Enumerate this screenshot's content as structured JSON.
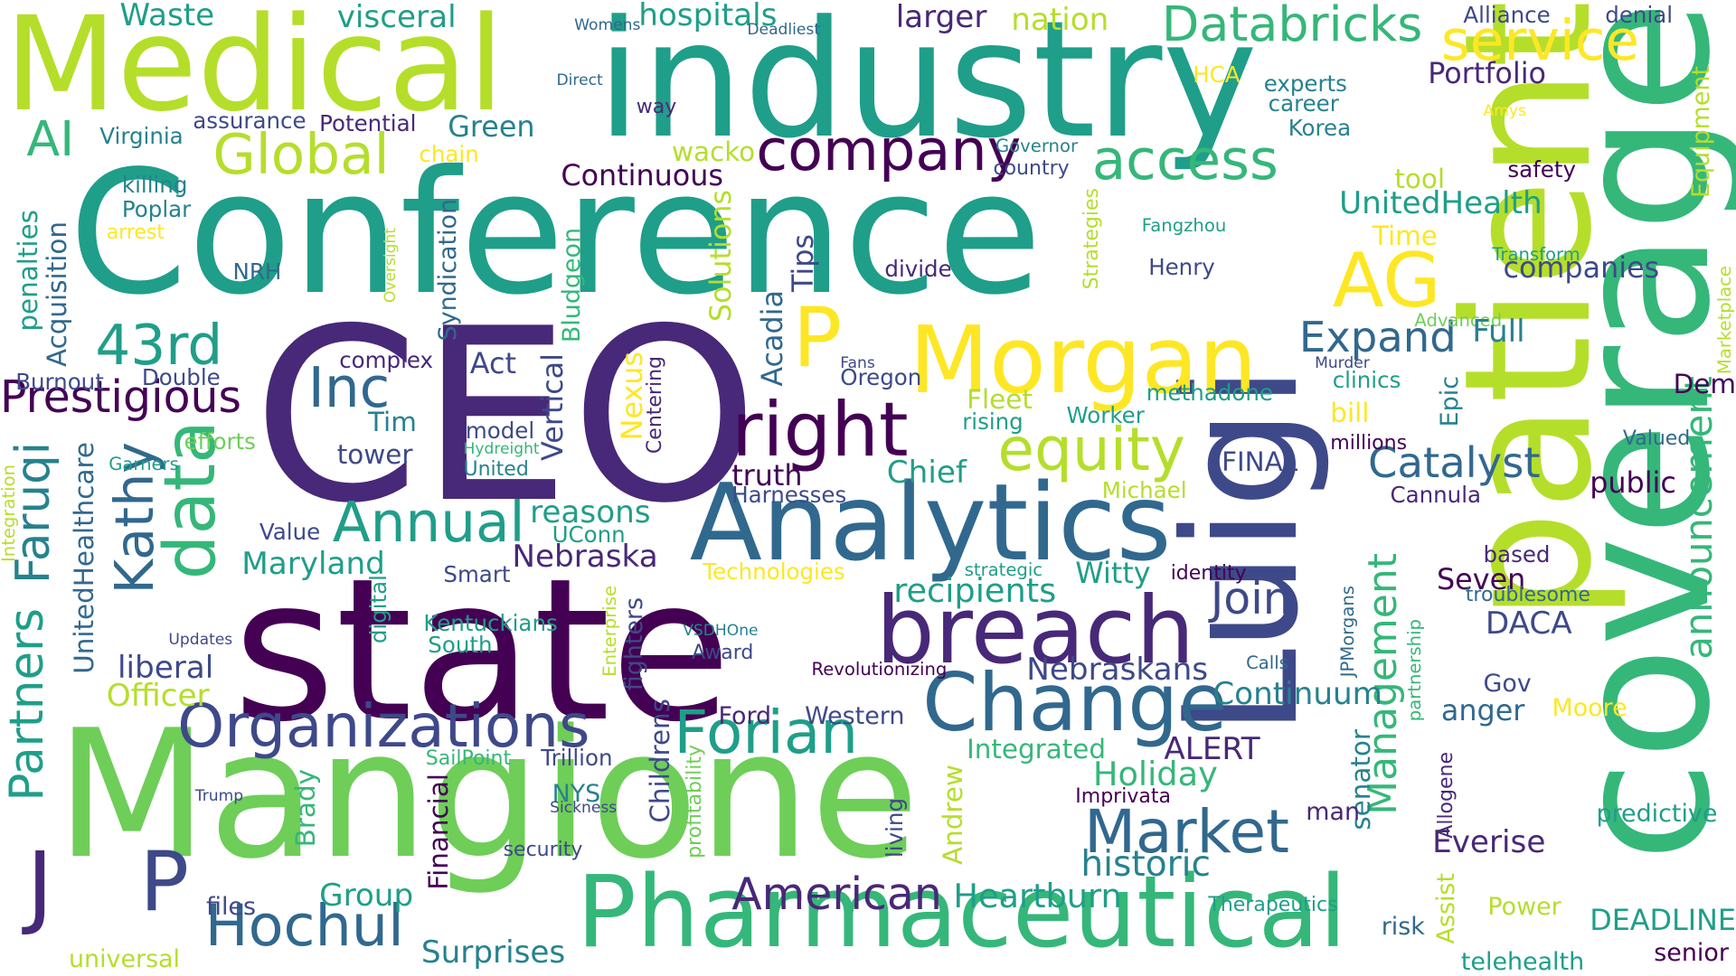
{
  "palette": {
    "p1": "#440154",
    "p2": "#482878",
    "p3": "#3e4989",
    "p4": "#31688e",
    "p5": "#26828e",
    "p6": "#1f9e89",
    "p7": "#35b779",
    "p8": "#6ece58",
    "p9": "#b5de2b",
    "p10": "#fde725"
  },
  "words": [
    {
      "text": "Conference",
      "color": "p6"
    },
    {
      "text": "industry",
      "color": "p6"
    },
    {
      "text": "Medical",
      "color": "p9"
    },
    {
      "text": "CEO",
      "color": "p2"
    },
    {
      "text": "state",
      "color": "p1"
    },
    {
      "text": "Mangione",
      "color": "p8"
    },
    {
      "text": "patient",
      "color": "p9"
    },
    {
      "text": "coverage",
      "color": "p7"
    },
    {
      "text": "Luigi",
      "color": "p3"
    },
    {
      "text": "Analytics",
      "color": "p4"
    },
    {
      "text": "Pharmaceutical",
      "color": "p7"
    },
    {
      "text": "breach",
      "color": "p2"
    },
    {
      "text": "Morgan",
      "color": "p10"
    },
    {
      "text": "Change",
      "color": "p4"
    },
    {
      "text": "right",
      "color": "p1"
    },
    {
      "text": "Organizations",
      "color": "p3"
    },
    {
      "text": "Forian",
      "color": "p6"
    },
    {
      "text": "equity",
      "color": "p9"
    },
    {
      "text": "company",
      "color": "p1"
    },
    {
      "text": "data",
      "color": "p7"
    },
    {
      "text": "Market",
      "color": "p4"
    },
    {
      "text": "Hochul",
      "color": "p4"
    },
    {
      "text": "Databricks",
      "color": "p7"
    },
    {
      "text": "service",
      "color": "p10"
    },
    {
      "text": "access",
      "color": "p7"
    },
    {
      "text": "Global",
      "color": "p9"
    },
    {
      "text": "AG",
      "color": "p10"
    },
    {
      "text": "AI",
      "color": "p7"
    },
    {
      "text": "P",
      "color": "p10"
    },
    {
      "text": "Inc",
      "color": "p4"
    },
    {
      "text": "43rd",
      "color": "p6"
    },
    {
      "text": "Annual",
      "color": "p6"
    },
    {
      "text": "Kathy",
      "color": "p4"
    },
    {
      "text": "Faruqi",
      "color": "p5"
    },
    {
      "text": "Partners",
      "color": "p6"
    },
    {
      "text": "J",
      "color": "p2"
    },
    {
      "text": "P",
      "color": "p3"
    },
    {
      "text": "Prestigious",
      "color": "p1"
    },
    {
      "text": "American",
      "color": "p2"
    },
    {
      "text": "Join",
      "color": "p3"
    },
    {
      "text": "Expand",
      "color": "p4"
    },
    {
      "text": "Catalyst",
      "color": "p4"
    },
    {
      "text": "announcement",
      "color": "p7"
    },
    {
      "text": "Management",
      "color": "p7"
    },
    {
      "text": "recipients",
      "color": "p6"
    },
    {
      "text": "Heartburn",
      "color": "p6"
    },
    {
      "text": "historic",
      "color": "p5"
    },
    {
      "text": "Holiday",
      "color": "p7"
    },
    {
      "text": "Continuum",
      "color": "p5"
    },
    {
      "text": "Nebraskans",
      "color": "p3"
    },
    {
      "text": "Nebraska",
      "color": "p2"
    },
    {
      "text": "reasons",
      "color": "p6"
    },
    {
      "text": "Maryland",
      "color": "p6"
    },
    {
      "text": "UnitedHealthcare",
      "color": "p4"
    },
    {
      "text": "UnitedHealth",
      "color": "p6"
    },
    {
      "text": "Portfolio",
      "color": "p2"
    },
    {
      "text": "companies",
      "color": "p3"
    },
    {
      "text": "Continuous",
      "color": "p1"
    },
    {
      "text": "Acquisition",
      "color": "p4"
    },
    {
      "text": "penalties",
      "color": "p6"
    },
    {
      "text": "Syndication",
      "color": "p4"
    },
    {
      "text": "Bludgeon",
      "color": "p7"
    },
    {
      "text": "Solutions",
      "color": "p9"
    },
    {
      "text": "Tips",
      "color": "p3"
    },
    {
      "text": "Acadia",
      "color": "p4"
    },
    {
      "text": "Nexus",
      "color": "p10"
    },
    {
      "text": "Centering",
      "color": "p2"
    },
    {
      "text": "Vertical",
      "color": "p3"
    },
    {
      "text": "Act",
      "color": "p3"
    },
    {
      "text": "complex",
      "color": "p2"
    },
    {
      "text": "Double",
      "color": "p3"
    },
    {
      "text": "Burnout",
      "color": "p3"
    },
    {
      "text": "Tim",
      "color": "p5"
    },
    {
      "text": "tower",
      "color": "p3"
    },
    {
      "text": "model",
      "color": "p3"
    },
    {
      "text": "Hydreight",
      "color": "p7"
    },
    {
      "text": "United",
      "color": "p5"
    },
    {
      "text": "efforts",
      "color": "p8"
    },
    {
      "text": "Garners",
      "color": "p6"
    },
    {
      "text": "Integration",
      "color": "p9"
    },
    {
      "text": "Value",
      "color": "p3"
    },
    {
      "text": "UConn",
      "color": "p6"
    },
    {
      "text": "Smart",
      "color": "p3"
    },
    {
      "text": "Technologies",
      "color": "p10"
    },
    {
      "text": "Kentuckians",
      "color": "p6"
    },
    {
      "text": "South",
      "color": "p6"
    },
    {
      "text": "digital",
      "color": "p6"
    },
    {
      "text": "Updates",
      "color": "p3"
    },
    {
      "text": "liberal",
      "color": "p3"
    },
    {
      "text": "Officer",
      "color": "p9"
    },
    {
      "text": "Enterprise",
      "color": "p9"
    },
    {
      "text": "fighters",
      "color": "p3"
    },
    {
      "text": "Childrens",
      "color": "p3"
    },
    {
      "text": "VSDHOne",
      "color": "p5"
    },
    {
      "text": "Award",
      "color": "p3"
    },
    {
      "text": "Revolutionizing",
      "color": "p1"
    },
    {
      "text": "Ford",
      "color": "p2"
    },
    {
      "text": "Western",
      "color": "p3"
    },
    {
      "text": "Trillion",
      "color": "p3"
    },
    {
      "text": "SailPoint",
      "color": "p7"
    },
    {
      "text": "Brady",
      "color": "p7"
    },
    {
      "text": "Financial",
      "color": "p1"
    },
    {
      "text": "profitability",
      "color": "p8"
    },
    {
      "text": "Andrew",
      "color": "p9"
    },
    {
      "text": "Integrated",
      "color": "p7"
    },
    {
      "text": "ALERT",
      "color": "p2"
    },
    {
      "text": "NYS",
      "color": "p5"
    },
    {
      "text": "Sickness",
      "color": "p3"
    },
    {
      "text": "living",
      "color": "p3"
    },
    {
      "text": "Trump",
      "color": "p3"
    },
    {
      "text": "security",
      "color": "p3"
    },
    {
      "text": "Group",
      "color": "p6"
    },
    {
      "text": "files",
      "color": "p3"
    },
    {
      "text": "universal",
      "color": "p9"
    },
    {
      "text": "Surprises",
      "color": "p5"
    },
    {
      "text": "Waste",
      "color": "p6"
    },
    {
      "text": "visceral",
      "color": "p6"
    },
    {
      "text": "hospitals",
      "color": "p6"
    },
    {
      "text": "Womens",
      "color": "p4"
    },
    {
      "text": "Deadliest",
      "color": "p4"
    },
    {
      "text": "larger",
      "color": "p2"
    },
    {
      "text": "nation",
      "color": "p9"
    },
    {
      "text": "Alliance",
      "color": "p3"
    },
    {
      "text": "denial",
      "color": "p3"
    },
    {
      "text": "experts",
      "color": "p5"
    },
    {
      "text": "career",
      "color": "p5"
    },
    {
      "text": "HCA",
      "color": "p10"
    },
    {
      "text": "Amys",
      "color": "p10"
    },
    {
      "text": "Equipment",
      "color": "p9"
    },
    {
      "text": "Direct",
      "color": "p4"
    },
    {
      "text": "way",
      "color": "p2"
    },
    {
      "text": "assurance",
      "color": "p3"
    },
    {
      "text": "Potential",
      "color": "p2"
    },
    {
      "text": "Green",
      "color": "p5"
    },
    {
      "text": "Virginia",
      "color": "p5"
    },
    {
      "text": "chain",
      "color": "p10"
    },
    {
      "text": "wacko",
      "color": "p9"
    },
    {
      "text": "Governor",
      "color": "p5"
    },
    {
      "text": "country",
      "color": "p3"
    },
    {
      "text": "Korea",
      "color": "p5"
    },
    {
      "text": "safety",
      "color": "p1"
    },
    {
      "text": "tool",
      "color": "p9"
    },
    {
      "text": "killing",
      "color": "p5"
    },
    {
      "text": "Poplar",
      "color": "p5"
    },
    {
      "text": "arrest",
      "color": "p10"
    },
    {
      "text": "Oversight",
      "color": "p9"
    },
    {
      "text": "NRH",
      "color": "p4"
    },
    {
      "text": "Fangzhou",
      "color": "p6"
    },
    {
      "text": "Strategies",
      "color": "p9"
    },
    {
      "text": "Henry",
      "color": "p3"
    },
    {
      "text": "divide",
      "color": "p2"
    },
    {
      "text": "Time",
      "color": "p10"
    },
    {
      "text": "Transform",
      "color": "p6"
    },
    {
      "text": "Advanced",
      "color": "p8"
    },
    {
      "text": "Full",
      "color": "p5"
    },
    {
      "text": "Marketplace",
      "color": "p9"
    },
    {
      "text": "Fans",
      "color": "p3"
    },
    {
      "text": "Oregon",
      "color": "p3"
    },
    {
      "text": "Murder",
      "color": "p3"
    },
    {
      "text": "clinics",
      "color": "p6"
    },
    {
      "text": "Dem",
      "color": "p1"
    },
    {
      "text": "methadone",
      "color": "p6"
    },
    {
      "text": "Fleet",
      "color": "p9"
    },
    {
      "text": "rising",
      "color": "p6"
    },
    {
      "text": "Worker",
      "color": "p6"
    },
    {
      "text": "bill",
      "color": "p10"
    },
    {
      "text": "Epic",
      "color": "p5"
    },
    {
      "text": "millions",
      "color": "p1"
    },
    {
      "text": "Valued",
      "color": "p4"
    },
    {
      "text": "truth",
      "color": "p1"
    },
    {
      "text": "Chief",
      "color": "p6"
    },
    {
      "text": "FINAL",
      "color": "p3"
    },
    {
      "text": "Harnesses",
      "color": "p3"
    },
    {
      "text": "public",
      "color": "p1"
    },
    {
      "text": "Michael",
      "color": "p9"
    },
    {
      "text": "Cannula",
      "color": "p2"
    },
    {
      "text": "based",
      "color": "p2"
    },
    {
      "text": "strategic",
      "color": "p6"
    },
    {
      "text": "Witty",
      "color": "p6"
    },
    {
      "text": "identity",
      "color": "p1"
    },
    {
      "text": "Seven",
      "color": "p1"
    },
    {
      "text": "troublesome",
      "color": "p4"
    },
    {
      "text": "DACA",
      "color": "p3"
    },
    {
      "text": "partnership",
      "color": "p7"
    },
    {
      "text": "JPMorgans",
      "color": "p4"
    },
    {
      "text": "Calls",
      "color": "p4"
    },
    {
      "text": "Gov",
      "color": "p3"
    },
    {
      "text": "anger",
      "color": "p4"
    },
    {
      "text": "Moore",
      "color": "p10"
    },
    {
      "text": "senator",
      "color": "p5"
    },
    {
      "text": "Imprivata",
      "color": "p1"
    },
    {
      "text": "Allogene",
      "color": "p2"
    },
    {
      "text": "man",
      "color": "p2"
    },
    {
      "text": "predictive",
      "color": "p6"
    },
    {
      "text": "Everise",
      "color": "p2"
    },
    {
      "text": "Assist",
      "color": "p9"
    },
    {
      "text": "Therapeutics",
      "color": "p6"
    },
    {
      "text": "risk",
      "color": "p4"
    },
    {
      "text": "Power",
      "color": "p9"
    },
    {
      "text": "DEADLINE",
      "color": "p6"
    },
    {
      "text": "telehealth",
      "color": "p6"
    },
    {
      "text": "senior",
      "color": "p1"
    }
  ]
}
